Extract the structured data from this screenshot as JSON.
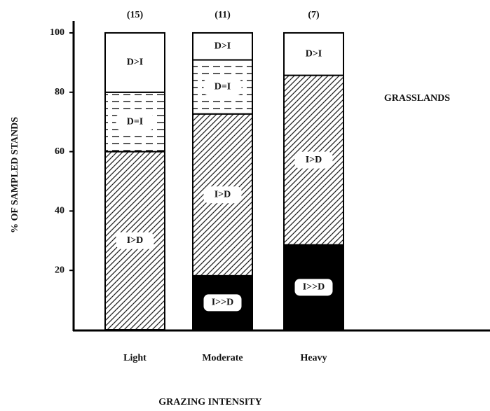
{
  "chart_data": {
    "type": "stacked_bar",
    "annotation": "GRASSLANDS",
    "x_label": "GRAZING INTENSITY",
    "y_label": "% OF SAMPLED STANDS",
    "categories": [
      "Light",
      "Moderate",
      "Heavy"
    ],
    "category_notes": [
      "(15)",
      "(11)",
      "(7)"
    ],
    "series": [
      {
        "name": "I>>D",
        "color": "#000000",
        "pattern": "solid",
        "values": [
          0,
          18.2,
          28.6
        ]
      },
      {
        "name": "I>D",
        "color": "#000000",
        "pattern": "diagonal",
        "values": [
          60,
          54.5,
          57.1
        ]
      },
      {
        "name": "D=I",
        "color": "#000000",
        "pattern": "dashed",
        "values": [
          20,
          18.2,
          0
        ]
      },
      {
        "name": "D>I",
        "color": "#ffffff",
        "pattern": "none",
        "values": [
          20,
          9.1,
          14.3
        ]
      }
    ],
    "ylim": [
      0,
      104
    ],
    "yticks": [
      20,
      40,
      60,
      80,
      100
    ]
  }
}
